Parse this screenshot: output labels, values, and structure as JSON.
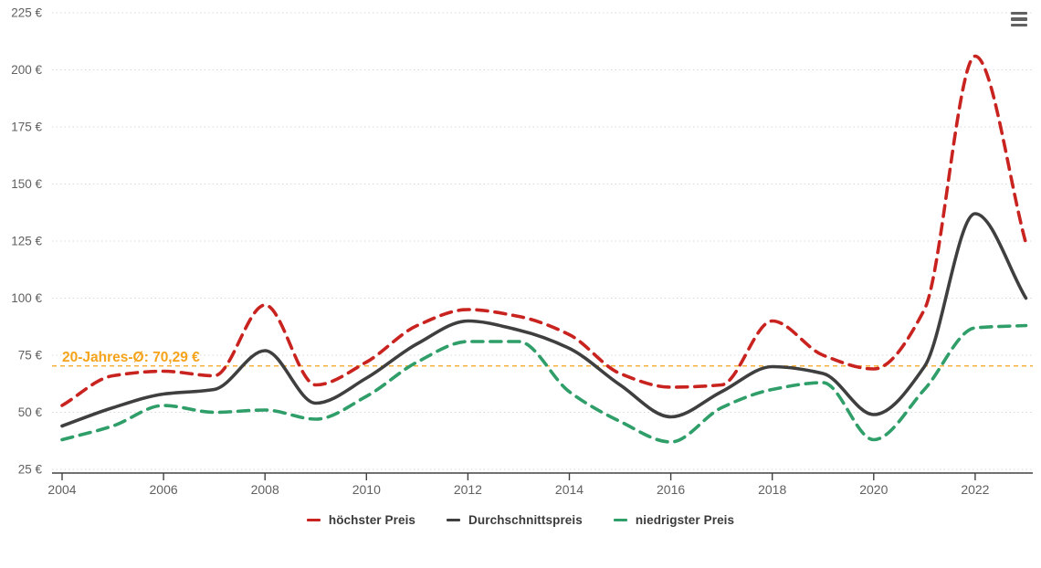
{
  "chart_data": {
    "type": "line",
    "x": [
      2004,
      2005,
      2006,
      2007,
      2008,
      2009,
      2010,
      2011,
      2012,
      2013,
      2014,
      2015,
      2016,
      2017,
      2018,
      2019,
      2020,
      2021,
      2022,
      2023
    ],
    "series": [
      {
        "name": "höchster Preis",
        "color": "#c8231f",
        "dashed": true,
        "values": [
          53,
          66,
          68,
          66,
          97,
          62,
          72,
          88,
          95,
          92,
          84,
          67,
          61,
          62,
          90,
          75,
          69,
          95,
          206,
          124
        ]
      },
      {
        "name": "Durchschnittspreis",
        "color": "#3f3f3f",
        "dashed": false,
        "values": [
          44,
          52,
          58,
          60,
          77,
          54,
          65,
          80,
          90,
          86,
          78,
          62,
          48,
          59,
          70,
          67,
          49,
          70,
          137,
          100
        ]
      },
      {
        "name": "niedrigster Preis",
        "color": "#2f9e69",
        "dashed": true,
        "values": [
          38,
          44,
          53,
          50,
          51,
          47,
          57,
          72,
          81,
          81,
          59,
          46,
          37,
          52,
          60,
          63,
          38,
          60,
          87,
          88
        ]
      }
    ],
    "average_line": {
      "label": "20-Jahres-Ø: 70,29 €",
      "value": 70.29,
      "color": "#f5a31a"
    },
    "title": "",
    "xlabel": "",
    "ylabel": "",
    "ylim": [
      25,
      225
    ],
    "xlim": [
      2004,
      2023.3
    ],
    "grid": true,
    "legend_position": "bottom"
  },
  "y_axis": {
    "ticks": [
      {
        "v": 225,
        "label": "225 €"
      },
      {
        "v": 200,
        "label": "200 €"
      },
      {
        "v": 175,
        "label": "175 €"
      },
      {
        "v": 150,
        "label": "150 €"
      },
      {
        "v": 125,
        "label": "125 €"
      },
      {
        "v": 100,
        "label": "100 €"
      },
      {
        "v": 75,
        "label": "75 €"
      },
      {
        "v": 50,
        "label": "50 €"
      },
      {
        "v": 25,
        "label": "25 €"
      }
    ]
  },
  "x_axis": {
    "ticks": [
      {
        "v": 2004,
        "label": "2004"
      },
      {
        "v": 2006,
        "label": "2006"
      },
      {
        "v": 2008,
        "label": "2008"
      },
      {
        "v": 2010,
        "label": "2010"
      },
      {
        "v": 2012,
        "label": "2012"
      },
      {
        "v": 2014,
        "label": "2014"
      },
      {
        "v": 2016,
        "label": "2016"
      },
      {
        "v": 2018,
        "label": "2018"
      },
      {
        "v": 2020,
        "label": "2020"
      },
      {
        "v": 2022,
        "label": "2022"
      }
    ]
  },
  "legend": {
    "items": [
      {
        "label": "höchster Preis",
        "color": "#c8231f"
      },
      {
        "label": "Durchschnittspreis",
        "color": "#3f3f3f"
      },
      {
        "label": "niedrigster Preis",
        "color": "#2f9e69"
      }
    ]
  },
  "menu": {
    "icon": "hamburger-menu-icon"
  },
  "colors": {
    "grid": "#d9d9d9",
    "axis_line": "#424242",
    "tick_label": "#606060",
    "annotation": "#f5a31a",
    "background": "#ffffff"
  }
}
